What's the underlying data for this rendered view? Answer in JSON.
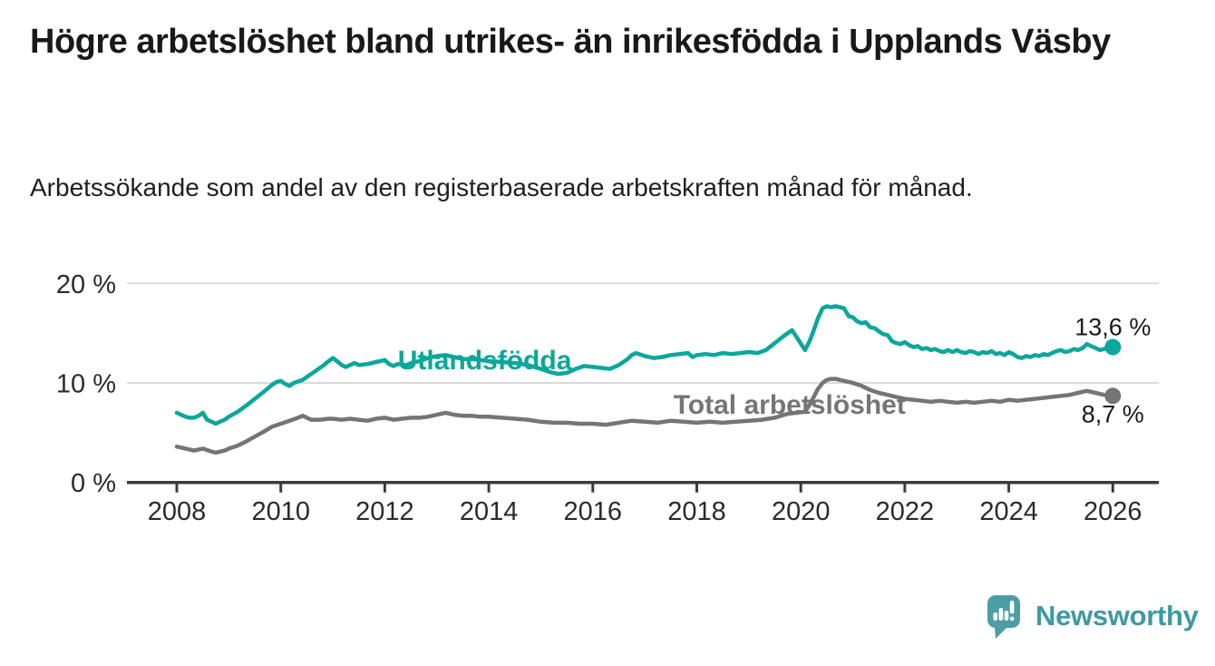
{
  "header": {
    "title": "Högre arbetslöshet bland utrikes- än inrikesfödda i Upplands Väsby",
    "subtitle": "Arbetssökande som andel av den registerbaserade arbetskraften månad för månad."
  },
  "footer": {
    "logo_text": "Newsworthy"
  },
  "colors": {
    "series_teal": "#0ba79a",
    "series_gray": "#757575",
    "grid": "#dadada",
    "axis": "#3b3b3b",
    "axis_text": "#2b2b2b",
    "annotation_text": "#191919",
    "logo_teal": "#4c9ea6",
    "logo_text_teal": "#3e99a3"
  },
  "chart_data": {
    "type": "line",
    "title": "",
    "xlabel": "",
    "ylabel": "",
    "grid": "horizontal",
    "legend": "inline-labels",
    "x_axis": {
      "ticks": [
        2008,
        2010,
        2012,
        2014,
        2016,
        2018,
        2020,
        2022,
        2024,
        2026
      ],
      "range": [
        2007.0,
        2026.9
      ]
    },
    "y_axis": {
      "unit": "%",
      "range": [
        0,
        21.5
      ],
      "ticks": [
        {
          "value": 0,
          "label": "0 %"
        },
        {
          "value": 10,
          "label": "10 %"
        },
        {
          "value": 20,
          "label": "20 %"
        }
      ]
    },
    "series": [
      {
        "id": "utlandsfodda",
        "name": "Utlandsfödda",
        "color": "#0ba79a",
        "end_value": 13.6,
        "end_label": "13,6 %",
        "label_anchor": {
          "year": 2012.25,
          "value": 12.3
        },
        "points": [
          [
            2008.0,
            7.0
          ],
          [
            2008.08,
            6.8
          ],
          [
            2008.17,
            6.6
          ],
          [
            2008.25,
            6.5
          ],
          [
            2008.33,
            6.5
          ],
          [
            2008.42,
            6.7
          ],
          [
            2008.5,
            7.0
          ],
          [
            2008.58,
            6.3
          ],
          [
            2008.67,
            6.1
          ],
          [
            2008.75,
            5.9
          ],
          [
            2008.83,
            6.1
          ],
          [
            2008.92,
            6.3
          ],
          [
            2009.0,
            6.6
          ],
          [
            2009.17,
            7.1
          ],
          [
            2009.33,
            7.7
          ],
          [
            2009.5,
            8.4
          ],
          [
            2009.67,
            9.1
          ],
          [
            2009.83,
            9.8
          ],
          [
            2009.92,
            10.1
          ],
          [
            2010.0,
            10.2
          ],
          [
            2010.08,
            9.9
          ],
          [
            2010.17,
            9.7
          ],
          [
            2010.25,
            10.0
          ],
          [
            2010.42,
            10.3
          ],
          [
            2010.5,
            10.6
          ],
          [
            2010.67,
            11.2
          ],
          [
            2010.83,
            11.8
          ],
          [
            2010.92,
            12.2
          ],
          [
            2011.0,
            12.5
          ],
          [
            2011.08,
            12.2
          ],
          [
            2011.17,
            11.8
          ],
          [
            2011.25,
            11.6
          ],
          [
            2011.33,
            11.8
          ],
          [
            2011.42,
            12.0
          ],
          [
            2011.5,
            11.8
          ],
          [
            2011.67,
            11.9
          ],
          [
            2011.83,
            12.1
          ],
          [
            2012.0,
            12.3
          ],
          [
            2012.08,
            11.9
          ],
          [
            2012.17,
            11.7
          ],
          [
            2012.25,
            11.9
          ],
          [
            2012.42,
            11.8
          ],
          [
            2012.5,
            12.0
          ],
          [
            2012.67,
            12.2
          ],
          [
            2012.83,
            12.5
          ],
          [
            2013.0,
            12.7
          ],
          [
            2013.17,
            12.8
          ],
          [
            2013.33,
            12.6
          ],
          [
            2013.5,
            12.4
          ],
          [
            2013.67,
            12.4
          ],
          [
            2013.83,
            12.3
          ],
          [
            2014.0,
            12.2
          ],
          [
            2014.25,
            12.1
          ],
          [
            2014.5,
            12.0
          ],
          [
            2014.75,
            11.8
          ],
          [
            2015.0,
            11.4
          ],
          [
            2015.17,
            11.1
          ],
          [
            2015.33,
            10.9
          ],
          [
            2015.5,
            11.0
          ],
          [
            2015.67,
            11.4
          ],
          [
            2015.83,
            11.7
          ],
          [
            2016.0,
            11.6
          ],
          [
            2016.17,
            11.5
          ],
          [
            2016.33,
            11.4
          ],
          [
            2016.5,
            11.8
          ],
          [
            2016.67,
            12.4
          ],
          [
            2016.75,
            12.8
          ],
          [
            2016.83,
            13.0
          ],
          [
            2017.0,
            12.7
          ],
          [
            2017.17,
            12.5
          ],
          [
            2017.33,
            12.6
          ],
          [
            2017.5,
            12.8
          ],
          [
            2017.67,
            12.9
          ],
          [
            2017.83,
            13.0
          ],
          [
            2017.92,
            12.6
          ],
          [
            2018.0,
            12.8
          ],
          [
            2018.17,
            12.9
          ],
          [
            2018.33,
            12.8
          ],
          [
            2018.5,
            13.0
          ],
          [
            2018.67,
            12.9
          ],
          [
            2018.83,
            13.0
          ],
          [
            2019.0,
            13.1
          ],
          [
            2019.17,
            13.0
          ],
          [
            2019.33,
            13.3
          ],
          [
            2019.5,
            14.0
          ],
          [
            2019.67,
            14.7
          ],
          [
            2019.83,
            15.3
          ],
          [
            2019.92,
            14.6
          ],
          [
            2020.08,
            13.3
          ],
          [
            2020.17,
            14.2
          ],
          [
            2020.25,
            15.3
          ],
          [
            2020.33,
            16.5
          ],
          [
            2020.42,
            17.5
          ],
          [
            2020.5,
            17.7
          ],
          [
            2020.58,
            17.6
          ],
          [
            2020.67,
            17.7
          ],
          [
            2020.75,
            17.6
          ],
          [
            2020.83,
            17.5
          ],
          [
            2020.92,
            16.7
          ],
          [
            2021.0,
            16.6
          ],
          [
            2021.08,
            16.2
          ],
          [
            2021.17,
            16.0
          ],
          [
            2021.25,
            16.1
          ],
          [
            2021.33,
            15.6
          ],
          [
            2021.42,
            15.5
          ],
          [
            2021.5,
            15.2
          ],
          [
            2021.58,
            14.9
          ],
          [
            2021.67,
            14.8
          ],
          [
            2021.75,
            14.2
          ],
          [
            2021.83,
            14.0
          ],
          [
            2021.92,
            13.9
          ],
          [
            2022.0,
            14.1
          ],
          [
            2022.08,
            13.8
          ],
          [
            2022.17,
            13.6
          ],
          [
            2022.25,
            13.7
          ],
          [
            2022.33,
            13.4
          ],
          [
            2022.42,
            13.5
          ],
          [
            2022.5,
            13.3
          ],
          [
            2022.58,
            13.4
          ],
          [
            2022.67,
            13.2
          ],
          [
            2022.75,
            13.1
          ],
          [
            2022.83,
            13.3
          ],
          [
            2022.92,
            13.1
          ],
          [
            2023.0,
            13.3
          ],
          [
            2023.08,
            13.1
          ],
          [
            2023.17,
            13.0
          ],
          [
            2023.25,
            13.2
          ],
          [
            2023.33,
            13.1
          ],
          [
            2023.42,
            12.9
          ],
          [
            2023.5,
            13.1
          ],
          [
            2023.58,
            13.0
          ],
          [
            2023.67,
            13.2
          ],
          [
            2023.75,
            12.9
          ],
          [
            2023.83,
            13.0
          ],
          [
            2023.92,
            12.8
          ],
          [
            2024.0,
            13.1
          ],
          [
            2024.08,
            12.9
          ],
          [
            2024.17,
            12.6
          ],
          [
            2024.25,
            12.5
          ],
          [
            2024.33,
            12.7
          ],
          [
            2024.42,
            12.6
          ],
          [
            2024.5,
            12.8
          ],
          [
            2024.58,
            12.7
          ],
          [
            2024.67,
            12.9
          ],
          [
            2024.75,
            12.8
          ],
          [
            2024.83,
            13.0
          ],
          [
            2024.92,
            13.2
          ],
          [
            2025.0,
            13.3
          ],
          [
            2025.08,
            13.1
          ],
          [
            2025.17,
            13.2
          ],
          [
            2025.25,
            13.4
          ],
          [
            2025.33,
            13.3
          ],
          [
            2025.42,
            13.5
          ],
          [
            2025.5,
            13.9
          ],
          [
            2025.58,
            13.7
          ],
          [
            2025.67,
            13.5
          ],
          [
            2025.75,
            13.3
          ],
          [
            2025.83,
            13.4
          ],
          [
            2025.92,
            13.5
          ],
          [
            2026.0,
            13.6
          ]
        ]
      },
      {
        "id": "total-arbetsloshet",
        "name": "Total arbetslöshet",
        "color": "#757575",
        "end_value": 8.7,
        "end_label": "8,7 %",
        "label_anchor": {
          "year": 2017.55,
          "value": 7.8
        },
        "points": [
          [
            2008.0,
            3.6
          ],
          [
            2008.17,
            3.4
          ],
          [
            2008.33,
            3.2
          ],
          [
            2008.5,
            3.4
          ],
          [
            2008.67,
            3.1
          ],
          [
            2008.75,
            3.0
          ],
          [
            2008.92,
            3.2
          ],
          [
            2009.0,
            3.4
          ],
          [
            2009.17,
            3.7
          ],
          [
            2009.33,
            4.1
          ],
          [
            2009.5,
            4.6
          ],
          [
            2009.67,
            5.1
          ],
          [
            2009.83,
            5.6
          ],
          [
            2010.0,
            5.9
          ],
          [
            2010.17,
            6.2
          ],
          [
            2010.33,
            6.5
          ],
          [
            2010.42,
            6.7
          ],
          [
            2010.5,
            6.5
          ],
          [
            2010.58,
            6.3
          ],
          [
            2010.75,
            6.3
          ],
          [
            2010.92,
            6.4
          ],
          [
            2011.0,
            6.4
          ],
          [
            2011.17,
            6.3
          ],
          [
            2011.33,
            6.4
          ],
          [
            2011.5,
            6.3
          ],
          [
            2011.67,
            6.2
          ],
          [
            2011.83,
            6.4
          ],
          [
            2012.0,
            6.5
          ],
          [
            2012.17,
            6.3
          ],
          [
            2012.33,
            6.4
          ],
          [
            2012.5,
            6.5
          ],
          [
            2012.67,
            6.5
          ],
          [
            2012.83,
            6.6
          ],
          [
            2013.0,
            6.8
          ],
          [
            2013.17,
            7.0
          ],
          [
            2013.33,
            6.8
          ],
          [
            2013.5,
            6.7
          ],
          [
            2013.67,
            6.7
          ],
          [
            2013.83,
            6.6
          ],
          [
            2014.0,
            6.6
          ],
          [
            2014.25,
            6.5
          ],
          [
            2014.5,
            6.4
          ],
          [
            2014.75,
            6.3
          ],
          [
            2015.0,
            6.1
          ],
          [
            2015.25,
            6.0
          ],
          [
            2015.5,
            6.0
          ],
          [
            2015.75,
            5.9
          ],
          [
            2016.0,
            5.9
          ],
          [
            2016.25,
            5.8
          ],
          [
            2016.5,
            6.0
          ],
          [
            2016.75,
            6.2
          ],
          [
            2017.0,
            6.1
          ],
          [
            2017.25,
            6.0
          ],
          [
            2017.5,
            6.2
          ],
          [
            2017.75,
            6.1
          ],
          [
            2018.0,
            6.0
          ],
          [
            2018.25,
            6.1
          ],
          [
            2018.5,
            6.0
          ],
          [
            2018.75,
            6.1
          ],
          [
            2019.0,
            6.2
          ],
          [
            2019.25,
            6.3
          ],
          [
            2019.5,
            6.5
          ],
          [
            2019.75,
            6.9
          ],
          [
            2019.92,
            7.0
          ],
          [
            2020.08,
            7.1
          ],
          [
            2020.17,
            7.8
          ],
          [
            2020.25,
            8.6
          ],
          [
            2020.33,
            9.4
          ],
          [
            2020.42,
            10.0
          ],
          [
            2020.5,
            10.3
          ],
          [
            2020.58,
            10.4
          ],
          [
            2020.67,
            10.4
          ],
          [
            2020.75,
            10.3
          ],
          [
            2020.92,
            10.1
          ],
          [
            2021.0,
            10.0
          ],
          [
            2021.17,
            9.7
          ],
          [
            2021.33,
            9.3
          ],
          [
            2021.5,
            9.0
          ],
          [
            2021.67,
            8.8
          ],
          [
            2021.83,
            8.6
          ],
          [
            2022.0,
            8.4
          ],
          [
            2022.17,
            8.3
          ],
          [
            2022.33,
            8.2
          ],
          [
            2022.5,
            8.1
          ],
          [
            2022.67,
            8.2
          ],
          [
            2022.83,
            8.1
          ],
          [
            2023.0,
            8.0
          ],
          [
            2023.17,
            8.1
          ],
          [
            2023.33,
            8.0
          ],
          [
            2023.5,
            8.1
          ],
          [
            2023.67,
            8.2
          ],
          [
            2023.83,
            8.1
          ],
          [
            2024.0,
            8.3
          ],
          [
            2024.17,
            8.2
          ],
          [
            2024.33,
            8.3
          ],
          [
            2024.5,
            8.4
          ],
          [
            2024.67,
            8.5
          ],
          [
            2024.83,
            8.6
          ],
          [
            2025.0,
            8.7
          ],
          [
            2025.17,
            8.8
          ],
          [
            2025.33,
            9.0
          ],
          [
            2025.5,
            9.2
          ],
          [
            2025.67,
            9.0
          ],
          [
            2025.83,
            8.8
          ],
          [
            2026.0,
            8.7
          ]
        ]
      }
    ]
  }
}
